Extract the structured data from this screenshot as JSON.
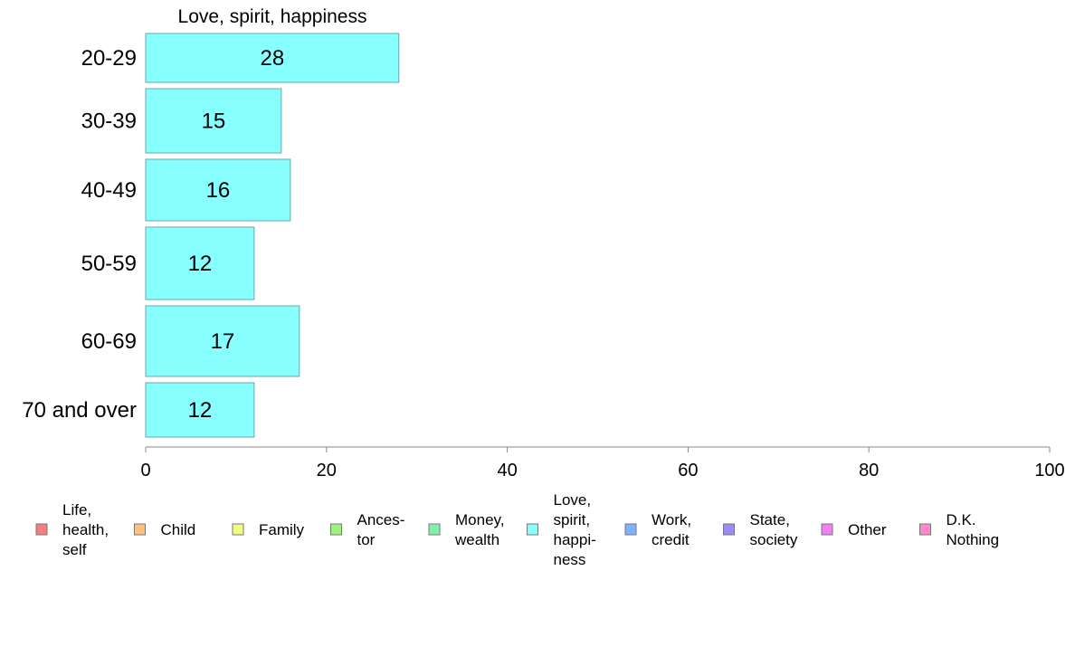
{
  "chart_data": {
    "type": "bar",
    "orientation": "horizontal",
    "title": "Love, spirit, happiness",
    "categories": [
      "20-29",
      "30-39",
      "40-49",
      "50-59",
      "60-69",
      "70 and over"
    ],
    "values": [
      28,
      15,
      16,
      12,
      17,
      12
    ],
    "value_labels": [
      "28",
      "15",
      "16",
      "12",
      "17",
      "12"
    ],
    "bar_color": "#88ffff",
    "bar_edge_color": "#6aa8a8",
    "xlim": [
      0,
      100
    ],
    "xticks": [
      0,
      20,
      40,
      60,
      80,
      100
    ],
    "xtick_labels": [
      "0",
      "20",
      "40",
      "60",
      "80",
      "100"
    ],
    "xlabel": "",
    "ylabel": "",
    "grid": false,
    "legend_position": "bottom",
    "legend": [
      {
        "lines": [
          "Life,",
          "health,",
          "self"
        ],
        "color": "#f08080"
      },
      {
        "lines": [
          "Child"
        ],
        "color": "#ffc080"
      },
      {
        "lines": [
          "Family"
        ],
        "color": "#f0ff80"
      },
      {
        "lines": [
          "Ances-",
          "tor"
        ],
        "color": "#a0f080"
      },
      {
        "lines": [
          "Money,",
          "wealth"
        ],
        "color": "#80f0b0"
      },
      {
        "lines": [
          "Love,",
          "spirit,",
          "happi-",
          "ness"
        ],
        "color": "#88ffff"
      },
      {
        "lines": [
          "Work,",
          "credit"
        ],
        "color": "#80b0ff"
      },
      {
        "lines": [
          "State,",
          "society"
        ],
        "color": "#9a8cf0"
      },
      {
        "lines": [
          "Other"
        ],
        "color": "#f080f0"
      },
      {
        "lines": [
          "D.K.",
          "Nothing"
        ],
        "color": "#ff88cc"
      }
    ]
  }
}
